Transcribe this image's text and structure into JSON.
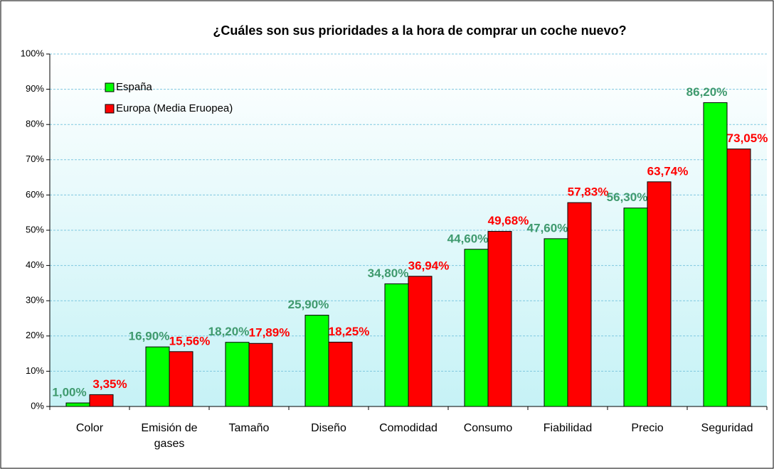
{
  "chart_data": {
    "type": "bar",
    "title": "¿Cuáles son sus prioridades a la hora de comprar un coche nuevo?",
    "categories": [
      "Color",
      "Emisión de gases",
      "Tamaño",
      "Diseño",
      "Comodidad",
      "Consumo",
      "Fiabilidad",
      "Precio",
      "Seguridad"
    ],
    "series": [
      {
        "name": "España",
        "color": "#00ff00",
        "label_color": "#3f9a6e",
        "values": [
          1.0,
          16.9,
          18.2,
          25.9,
          34.8,
          44.6,
          47.6,
          56.3,
          86.2
        ],
        "value_labels": [
          "1,00%",
          "16,90%",
          "18,20%",
          "25,90%",
          "34,80%",
          "44,60%",
          "47,60%",
          "56,30%",
          "86,20%"
        ]
      },
      {
        "name": "Europa (Media Eruopea)",
        "color": "#ff0000",
        "label_color": "#ff0000",
        "values": [
          3.35,
          15.56,
          17.89,
          18.25,
          36.94,
          49.68,
          57.83,
          63.74,
          73.05
        ],
        "value_labels": [
          "3,35%",
          "15,56%",
          "17,89%",
          "18,25%",
          "36,94%",
          "49,68%",
          "57,83%",
          "63,74%",
          "73,05%"
        ]
      }
    ],
    "ylim": [
      0,
      100
    ],
    "yticks": [
      {
        "value": 0,
        "label": "0%"
      },
      {
        "value": 10,
        "label": "10%"
      },
      {
        "value": 20,
        "label": "20%"
      },
      {
        "value": 30,
        "label": "30%"
      },
      {
        "value": 40,
        "label": "40%"
      },
      {
        "value": 50,
        "label": "50%"
      },
      {
        "value": 60,
        "label": "60%"
      },
      {
        "value": 70,
        "label": "70%"
      },
      {
        "value": 80,
        "label": "80%"
      },
      {
        "value": 90,
        "label": "90%"
      },
      {
        "value": 100,
        "label": "100%"
      }
    ],
    "grid": true,
    "legend": "upper left"
  }
}
